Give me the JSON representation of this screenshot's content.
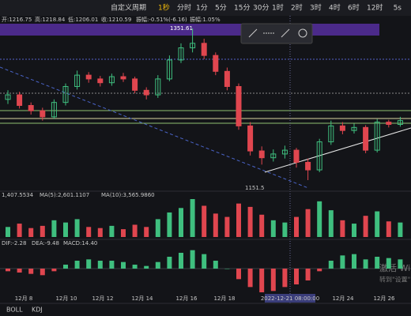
{
  "toolbar": {
    "period": "自定义周期",
    "intervals": [
      "1秒",
      "分时",
      "1分",
      "5分",
      "15分",
      "30分",
      "1时",
      "2时",
      "3时",
      "4时",
      "6时",
      "12时"
    ],
    "right": "5s"
  },
  "info": [
    "开:1216.75",
    "高:1218.84",
    "低:1206.01",
    "收:1210.59",
    "振幅:-0.51%(-6.16)",
    "振幅:1.05%"
  ],
  "price_labels": {
    "high": "1351.61",
    "low": "1151.5"
  },
  "candles": [
    [
      1258,
      1270,
      1252,
      1264
    ],
    [
      1264,
      1268,
      1246,
      1250
    ],
    [
      1250,
      1254,
      1238,
      1243
    ],
    [
      1243,
      1247,
      1230,
      1235
    ],
    [
      1235,
      1258,
      1232,
      1254
    ],
    [
      1254,
      1279,
      1250,
      1275
    ],
    [
      1275,
      1296,
      1271,
      1290
    ],
    [
      1290,
      1294,
      1280,
      1285
    ],
    [
      1285,
      1289,
      1275,
      1280
    ],
    [
      1280,
      1292,
      1276,
      1288
    ],
    [
      1288,
      1293,
      1281,
      1285
    ],
    [
      1285,
      1288,
      1266,
      1270
    ],
    [
      1270,
      1274,
      1258,
      1264
    ],
    [
      1264,
      1290,
      1260,
      1285
    ],
    [
      1285,
      1316,
      1282,
      1310
    ],
    [
      1310,
      1332,
      1306,
      1326
    ],
    [
      1326,
      1351.61,
      1320,
      1332
    ],
    [
      1332,
      1338,
      1311,
      1316
    ],
    [
      1316,
      1320,
      1290,
      1295
    ],
    [
      1295,
      1300,
      1270,
      1275
    ],
    [
      1275,
      1279,
      1218,
      1223
    ],
    [
      1223,
      1228,
      1184,
      1190
    ],
    [
      1190,
      1196,
      1172,
      1181
    ],
    [
      1181,
      1192,
      1176,
      1186
    ],
    [
      1186,
      1197,
      1180,
      1191
    ],
    [
      1191,
      1194,
      1168,
      1175
    ],
    [
      1175,
      1180,
      1151.5,
      1165
    ],
    [
      1165,
      1206,
      1162,
      1202
    ],
    [
      1202,
      1230,
      1198,
      1223
    ],
    [
      1223,
      1228,
      1212,
      1217
    ],
    [
      1217,
      1226,
      1213,
      1221
    ],
    [
      1221,
      1224,
      1187,
      1191
    ],
    [
      1191,
      1232,
      1188,
      1228
    ],
    [
      1228,
      1231,
      1221,
      1225
    ],
    [
      1225,
      1235,
      1222,
      1230
    ]
  ],
  "volume_labels": [
    "1,407.5534",
    "MA(5):2,601.1107",
    "MA(10):3,565.9860"
  ],
  "volume": [
    900,
    1200,
    800,
    1000,
    1500,
    1300,
    1600,
    900,
    800,
    1000,
    700,
    1100,
    900,
    1600,
    2200,
    2600,
    3400,
    2800,
    2100,
    1800,
    3000,
    2700,
    2000,
    1500,
    1300,
    1800,
    2500,
    3200,
    2400,
    1500,
    1200,
    1900,
    2300,
    1400,
    1300
  ],
  "macd_labels": [
    "DIF:-2.28",
    "DEA:-9.48",
    "MACD:14.40"
  ],
  "macd": [
    -2,
    -3,
    -4,
    -5,
    -2,
    3,
    6,
    7,
    6,
    6,
    5,
    3,
    2,
    5,
    9,
    12,
    14,
    11,
    6,
    0,
    -8,
    -14,
    -18,
    -17,
    -14,
    -12,
    -9,
    -2,
    6,
    10,
    11,
    7,
    9,
    8,
    7
  ],
  "dates": [
    "12月 8",
    "12月 10",
    "12月 12",
    "12月 14",
    "12月 16",
    "12月 18",
    "2022-12-21 08:00:00",
    "12月 24",
    "12月 26"
  ],
  "watermark": [
    "激活 Win",
    "转到\"设置\"以"
  ],
  "indicators": [
    "BOLL",
    "KDJ"
  ]
}
